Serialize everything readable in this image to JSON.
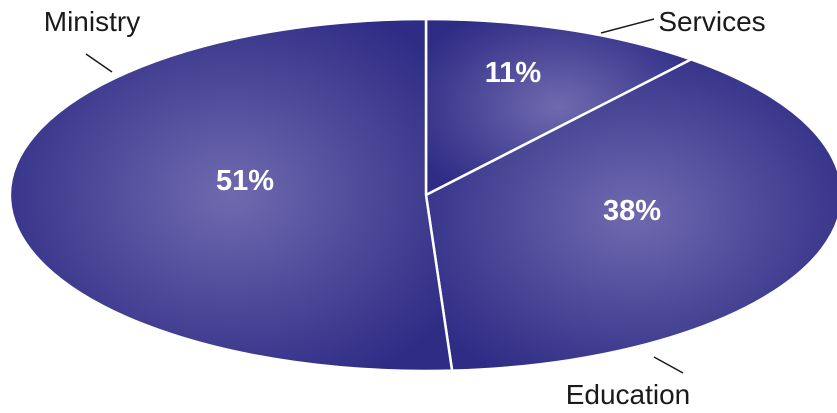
{
  "chart_data": {
    "type": "pie",
    "slices": [
      {
        "name": "Services",
        "value": 11,
        "label": "11%"
      },
      {
        "name": "Education",
        "value": 38,
        "label": "38%"
      },
      {
        "name": "Ministry",
        "value": 51,
        "label": "51%"
      }
    ],
    "colors": {
      "slice_light": "#6f6aaf",
      "slice_dark": "#2e2c85",
      "separator": "#ffffff"
    },
    "legend": "none"
  }
}
